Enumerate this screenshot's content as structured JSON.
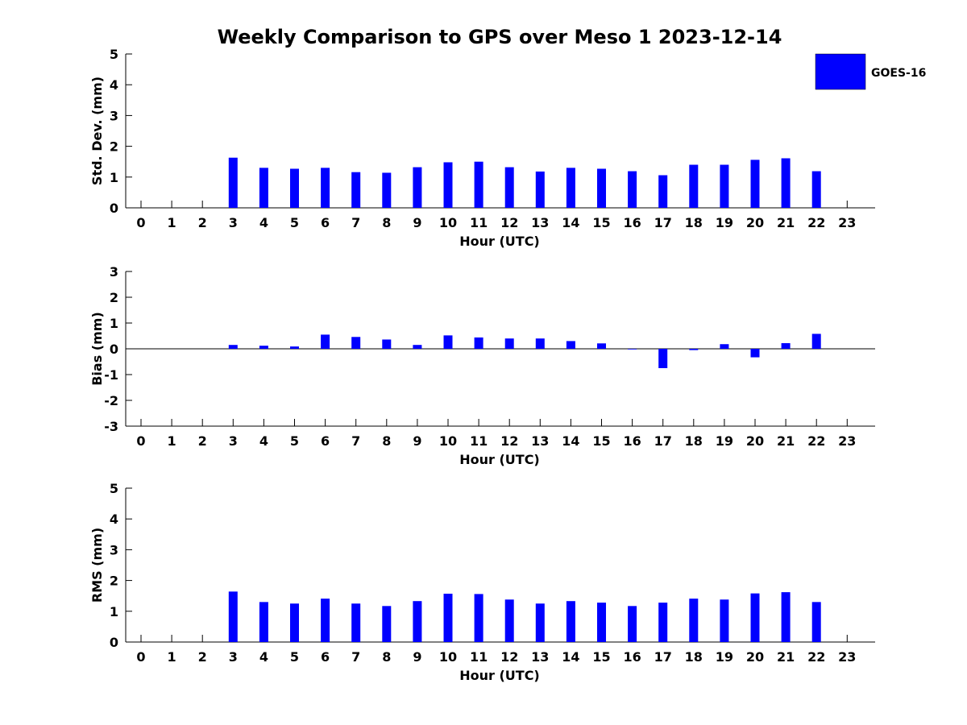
{
  "title": "Weekly Comparison to GPS over Meso 1 2023-12-14",
  "legend": {
    "label": "GOES-16",
    "color": "#0000ff",
    "placement": "top-right"
  },
  "chart_data": [
    {
      "type": "bar",
      "series": [
        {
          "name": "GOES-16",
          "values": [
            null,
            null,
            null,
            1.63,
            1.3,
            1.27,
            1.3,
            1.16,
            1.14,
            1.32,
            1.48,
            1.5,
            1.32,
            1.18,
            1.3,
            1.27,
            1.19,
            1.06,
            1.4,
            1.4,
            1.56,
            1.61,
            1.19,
            null
          ]
        }
      ],
      "categories": [
        "0",
        "1",
        "2",
        "3",
        "4",
        "5",
        "6",
        "7",
        "8",
        "9",
        "10",
        "11",
        "12",
        "13",
        "14",
        "15",
        "16",
        "17",
        "18",
        "19",
        "20",
        "21",
        "22",
        "23"
      ],
      "xlabel": "Hour (UTC)",
      "ylabel": "Std. Dev. (mm)",
      "ylim": [
        0,
        5
      ],
      "yticks": [
        "0",
        "1",
        "2",
        "3",
        "4",
        "5"
      ],
      "color": "#0000ff",
      "grid": false
    },
    {
      "type": "bar",
      "series": [
        {
          "name": "GOES-16",
          "values": [
            null,
            null,
            null,
            0.15,
            0.12,
            0.09,
            0.55,
            0.46,
            0.36,
            0.15,
            0.52,
            0.44,
            0.4,
            0.4,
            0.3,
            0.21,
            0.0,
            -0.75,
            -0.05,
            0.18,
            -0.33,
            0.22,
            0.58,
            null
          ]
        }
      ],
      "categories": [
        "0",
        "1",
        "2",
        "3",
        "4",
        "5",
        "6",
        "7",
        "8",
        "9",
        "10",
        "11",
        "12",
        "13",
        "14",
        "15",
        "16",
        "17",
        "18",
        "19",
        "20",
        "21",
        "22",
        "23"
      ],
      "xlabel": "Hour (UTC)",
      "ylabel": "Bias (mm)",
      "ylim": [
        -3,
        3
      ],
      "yticks": [
        "-3",
        "-2",
        "-1",
        "0",
        "1",
        "2",
        "3"
      ],
      "color": "#0000ff",
      "grid": false
    },
    {
      "type": "bar",
      "series": [
        {
          "name": "GOES-16",
          "values": [
            null,
            null,
            null,
            1.64,
            1.3,
            1.25,
            1.41,
            1.25,
            1.17,
            1.33,
            1.57,
            1.56,
            1.38,
            1.25,
            1.33,
            1.28,
            1.17,
            1.28,
            1.41,
            1.38,
            1.58,
            1.62,
            1.3,
            null
          ]
        }
      ],
      "categories": [
        "0",
        "1",
        "2",
        "3",
        "4",
        "5",
        "6",
        "7",
        "8",
        "9",
        "10",
        "11",
        "12",
        "13",
        "14",
        "15",
        "16",
        "17",
        "18",
        "19",
        "20",
        "21",
        "22",
        "23"
      ],
      "xlabel": "Hour (UTC)",
      "ylabel": "RMS (mm)",
      "ylim": [
        0,
        5
      ],
      "yticks": [
        "0",
        "1",
        "2",
        "3",
        "4",
        "5"
      ],
      "color": "#0000ff",
      "grid": false
    }
  ]
}
